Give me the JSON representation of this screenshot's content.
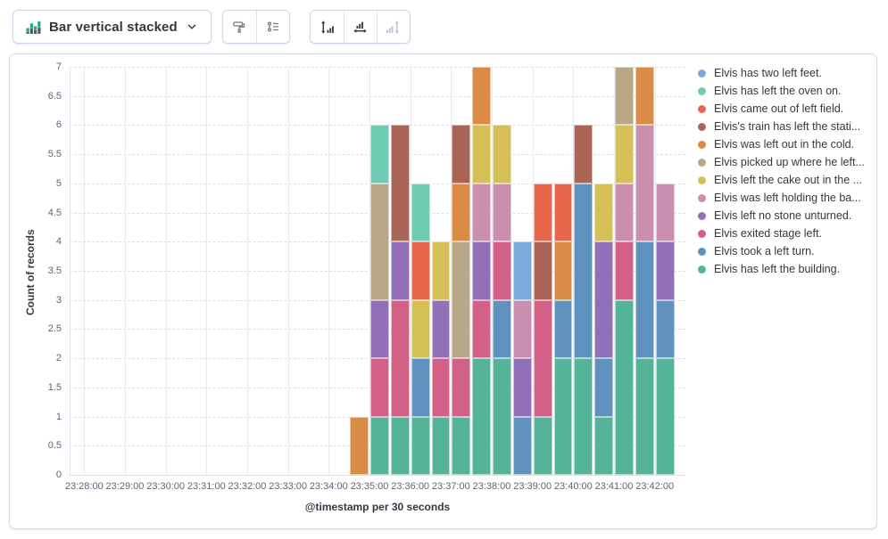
{
  "toolbar": {
    "chart_type_label": "Bar vertical stacked",
    "chart_type_icon": "bar-vertical-stacked-icon",
    "chevron_icon": "chevron-down-icon",
    "groups": [
      {
        "buttons": [
          {
            "icon": "visual-options-icon",
            "disabled": false
          },
          {
            "icon": "legend-settings-icon",
            "disabled": false
          }
        ]
      },
      {
        "buttons": [
          {
            "icon": "left-axis-icon",
            "disabled": false
          },
          {
            "icon": "bottom-axis-icon",
            "disabled": false
          },
          {
            "icon": "right-axis-icon",
            "disabled": true
          }
        ]
      }
    ]
  },
  "chart_data": {
    "type": "bar",
    "stacked": true,
    "orientation": "vertical",
    "xlabel": "@timestamp per 30 seconds",
    "ylabel": "Count of records",
    "ylim": [
      0,
      7
    ],
    "grid": true,
    "legend_position": "right",
    "x_axis_tick_labels": [
      "23:28:00",
      "23:29:00",
      "23:30:00",
      "23:31:00",
      "23:32:00",
      "23:33:00",
      "23:34:00",
      "23:35:00",
      "23:36:00",
      "23:37:00",
      "23:38:00",
      "23:39:00",
      "23:40:00",
      "23:41:00",
      "23:42:00"
    ],
    "y_tick_labels": [
      "0",
      "0.5",
      "1",
      "1.5",
      "2",
      "2.5",
      "3",
      "3.5",
      "4",
      "4.5",
      "5",
      "5.5",
      "6",
      "6.5",
      "7"
    ],
    "bucket_seconds": 30,
    "categories": [
      "23:34:30",
      "23:35:00",
      "23:35:30",
      "23:36:00",
      "23:36:30",
      "23:37:00",
      "23:37:30",
      "23:38:00",
      "23:38:30",
      "23:39:00",
      "23:39:30",
      "23:40:00",
      "23:40:30",
      "23:41:00",
      "23:41:30",
      "23:42:00"
    ],
    "series": [
      {
        "label": "Elvis has two left feet.",
        "color": "#79AAD9",
        "values": [
          0,
          0,
          0,
          0,
          0,
          0,
          0,
          0,
          1,
          0,
          0,
          0,
          0,
          0,
          0,
          0
        ]
      },
      {
        "label": "Elvis has left the oven on.",
        "color": "#6DCCB1",
        "values": [
          0,
          1,
          0,
          1,
          0,
          0,
          0,
          0,
          0,
          0,
          0,
          0,
          0,
          0,
          0,
          0
        ]
      },
      {
        "label": "Elvis came out of left field.",
        "color": "#E7664C",
        "values": [
          0,
          0,
          0,
          1,
          0,
          0,
          0,
          0,
          0,
          1,
          1,
          0,
          0,
          0,
          0,
          0
        ]
      },
      {
        "label": "Elvis's train has left the stati...",
        "color": "#AA6556",
        "values": [
          0,
          0,
          2,
          0,
          0,
          1,
          0,
          0,
          0,
          1,
          0,
          1,
          0,
          0,
          0,
          0
        ]
      },
      {
        "label": "Elvis was left out in the cold.",
        "color": "#DA8B45",
        "values": [
          1,
          0,
          0,
          0,
          0,
          1,
          1,
          0,
          0,
          0,
          1,
          0,
          0,
          0,
          1,
          0
        ]
      },
      {
        "label": "Elvis picked up where he left...",
        "color": "#B9A888",
        "values": [
          0,
          2,
          0,
          0,
          0,
          2,
          0,
          0,
          0,
          0,
          0,
          0,
          0,
          1,
          0,
          0
        ]
      },
      {
        "label": "Elvis left the cake out in the ...",
        "color": "#D6BF57",
        "values": [
          0,
          0,
          0,
          1,
          1,
          0,
          1,
          1,
          0,
          0,
          0,
          0,
          1,
          1,
          0,
          0
        ]
      },
      {
        "label": "Elvis was left holding the ba...",
        "color": "#CA8EAE",
        "values": [
          0,
          0,
          0,
          0,
          0,
          0,
          1,
          1,
          1,
          0,
          0,
          0,
          0,
          1,
          2,
          1
        ]
      },
      {
        "label": "Elvis left no stone unturned.",
        "color": "#9170B8",
        "values": [
          0,
          1,
          1,
          0,
          1,
          0,
          1,
          0,
          1,
          0,
          0,
          0,
          2,
          0,
          0,
          1
        ]
      },
      {
        "label": "Elvis exited stage left.",
        "color": "#D36086",
        "values": [
          0,
          1,
          2,
          0,
          1,
          1,
          1,
          1,
          0,
          2,
          0,
          0,
          0,
          1,
          0,
          0
        ]
      },
      {
        "label": "Elvis took a left turn.",
        "color": "#6092C0",
        "values": [
          0,
          0,
          0,
          1,
          0,
          0,
          0,
          1,
          1,
          0,
          1,
          3,
          1,
          0,
          2,
          1
        ]
      },
      {
        "label": "Elvis has left the building.",
        "color": "#54B399",
        "values": [
          0,
          1,
          1,
          1,
          1,
          1,
          2,
          2,
          0,
          1,
          2,
          2,
          1,
          3,
          2,
          2
        ]
      }
    ]
  }
}
